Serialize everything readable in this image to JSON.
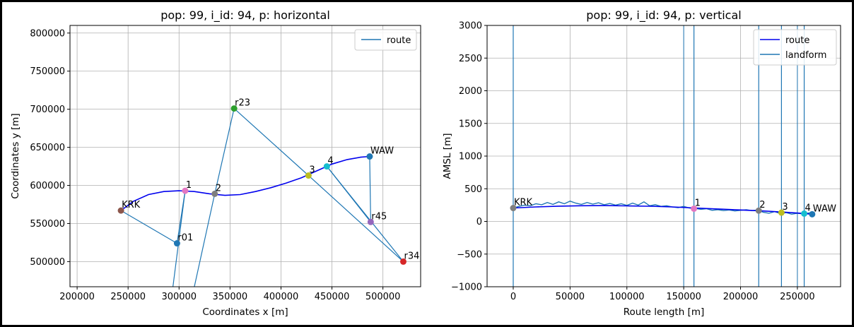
{
  "chart_data": [
    {
      "type": "line",
      "title": "pop: 99, i_id: 94, p: horizontal",
      "xlabel": "Coordinates x [m]",
      "ylabel": "Coordinates y [m]",
      "xlim": [
        193000,
        537000
      ],
      "ylim": [
        467000,
        810000
      ],
      "xticks": [
        200000,
        250000,
        300000,
        350000,
        400000,
        450000,
        500000
      ],
      "yticks": [
        500000,
        550000,
        600000,
        650000,
        700000,
        750000,
        800000
      ],
      "grid": true,
      "legend": {
        "position": "top-right",
        "entries": [
          "route"
        ]
      },
      "colors": {
        "route_curve": "#0000ee",
        "route_legend": "#1f77b4",
        "segments": "#1f77b4"
      },
      "points": [
        {
          "label": "KRK",
          "x": 243000,
          "y": 567000,
          "color": "#8c564b"
        },
        {
          "label": "1",
          "x": 306000,
          "y": 593000,
          "color": "#e377c2"
        },
        {
          "label": "2",
          "x": 335000,
          "y": 589000,
          "color": "#7f7f7f"
        },
        {
          "label": "3",
          "x": 427000,
          "y": 613000,
          "color": "#bcbd22"
        },
        {
          "label": "4",
          "x": 445000,
          "y": 625000,
          "color": "#17becf"
        },
        {
          "label": "WAW",
          "x": 487000,
          "y": 638000,
          "color": "#1f77b4"
        },
        {
          "label": "r01",
          "x": 298000,
          "y": 524000,
          "color": "#1f77b4"
        },
        {
          "label": "r23",
          "x": 354000,
          "y": 701000,
          "color": "#2ca02c"
        },
        {
          "label": "r34",
          "x": 520000,
          "y": 500000,
          "color": "#d62728"
        },
        {
          "label": "r45",
          "x": 488000,
          "y": 552000,
          "color": "#9467bd"
        }
      ],
      "segments": [
        [
          [
            243000,
            567000
          ],
          [
            298000,
            524000
          ]
        ],
        [
          [
            298000,
            524000
          ],
          [
            306000,
            593000
          ]
        ],
        [
          [
            306000,
            593000
          ],
          [
            294000,
            467000
          ]
        ],
        [
          [
            335000,
            589000
          ],
          [
            354000,
            701000
          ]
        ],
        [
          [
            315000,
            467000
          ],
          [
            335000,
            589000
          ]
        ],
        [
          [
            354000,
            701000
          ],
          [
            427000,
            613000
          ]
        ],
        [
          [
            427000,
            613000
          ],
          [
            520000,
            500000
          ]
        ],
        [
          [
            520000,
            500000
          ],
          [
            445000,
            625000
          ]
        ],
        [
          [
            445000,
            625000
          ],
          [
            488000,
            552000
          ]
        ],
        [
          [
            488000,
            552000
          ],
          [
            487000,
            638000
          ]
        ]
      ],
      "route": [
        [
          243000,
          567000
        ],
        [
          255000,
          579000
        ],
        [
          270000,
          588000
        ],
        [
          285000,
          592000
        ],
        [
          300000,
          593000
        ],
        [
          315000,
          592000
        ],
        [
          330000,
          589000
        ],
        [
          345000,
          587000
        ],
        [
          360000,
          588000
        ],
        [
          375000,
          592000
        ],
        [
          390000,
          597000
        ],
        [
          405000,
          603000
        ],
        [
          420000,
          610000
        ],
        [
          435000,
          619000
        ],
        [
          450000,
          628000
        ],
        [
          465000,
          634000
        ],
        [
          478000,
          637000
        ],
        [
          487000,
          638000
        ]
      ]
    },
    {
      "type": "line",
      "title": "pop: 99, i_id: 94, p: vertical",
      "xlabel": "Route length [m]",
      "ylabel": "AMSL [m]",
      "xlim": [
        -23000,
        288000
      ],
      "ylim": [
        -1000,
        3000
      ],
      "xticks": [
        0,
        50000,
        100000,
        150000,
        200000,
        250000
      ],
      "yticks": [
        -1000,
        -500,
        0,
        500,
        1000,
        1500,
        2000,
        2500,
        3000
      ],
      "grid": true,
      "legend": {
        "position": "top-right",
        "entries": [
          "route",
          "landform"
        ]
      },
      "colors": {
        "route": "#0000ee",
        "landform": "#1f77b4"
      },
      "points": [
        {
          "label": "KRK",
          "x": 0,
          "y": 205,
          "color": "#7f7f7f"
        },
        {
          "label": "1",
          "x": 159000,
          "y": 195,
          "color": "#e377c2"
        },
        {
          "label": "2",
          "x": 216000,
          "y": 165,
          "color": "#7f7f7f"
        },
        {
          "label": "3",
          "x": 236000,
          "y": 135,
          "color": "#bcbd22"
        },
        {
          "label": "4",
          "x": 256000,
          "y": 120,
          "color": "#17becf"
        },
        {
          "label": "WAW",
          "x": 263000,
          "y": 110,
          "color": "#1f77b4"
        }
      ],
      "landform_walls": [
        0,
        159000,
        216000,
        236000,
        256000
      ],
      "grid_walls": [
        150000,
        250000
      ],
      "route": [
        [
          0,
          205
        ],
        [
          20000,
          222
        ],
        [
          40000,
          233
        ],
        [
          60000,
          240
        ],
        [
          80000,
          242
        ],
        [
          100000,
          238
        ],
        [
          120000,
          232
        ],
        [
          140000,
          222
        ],
        [
          160000,
          205
        ],
        [
          180000,
          190
        ],
        [
          200000,
          175
        ],
        [
          220000,
          160
        ],
        [
          240000,
          140
        ],
        [
          255000,
          122
        ],
        [
          263000,
          110
        ]
      ],
      "landform": [
        [
          0,
          205
        ],
        [
          5000,
          230
        ],
        [
          10000,
          250
        ],
        [
          15000,
          240
        ],
        [
          20000,
          270
        ],
        [
          25000,
          255
        ],
        [
          30000,
          290
        ],
        [
          35000,
          260
        ],
        [
          40000,
          300
        ],
        [
          45000,
          270
        ],
        [
          50000,
          310
        ],
        [
          55000,
          280
        ],
        [
          60000,
          260
        ],
        [
          65000,
          290
        ],
        [
          70000,
          265
        ],
        [
          75000,
          285
        ],
        [
          80000,
          255
        ],
        [
          85000,
          275
        ],
        [
          90000,
          250
        ],
        [
          95000,
          270
        ],
        [
          100000,
          245
        ],
        [
          105000,
          280
        ],
        [
          110000,
          250
        ],
        [
          115000,
          300
        ],
        [
          120000,
          240
        ],
        [
          125000,
          255
        ],
        [
          130000,
          230
        ],
        [
          135000,
          240
        ],
        [
          140000,
          220
        ],
        [
          145000,
          210
        ],
        [
          150000,
          230
        ],
        [
          155000,
          205
        ],
        [
          160000,
          200
        ],
        [
          165000,
          185
        ],
        [
          170000,
          195
        ],
        [
          175000,
          170
        ],
        [
          180000,
          180
        ],
        [
          185000,
          165
        ],
        [
          190000,
          175
        ],
        [
          195000,
          160
        ],
        [
          200000,
          170
        ],
        [
          205000,
          180
        ],
        [
          210000,
          165
        ],
        [
          215000,
          175
        ],
        [
          220000,
          140
        ],
        [
          225000,
          125
        ],
        [
          230000,
          150
        ],
        [
          235000,
          120
        ],
        [
          240000,
          135
        ],
        [
          245000,
          110
        ],
        [
          250000,
          125
        ],
        [
          255000,
          115
        ],
        [
          260000,
          130
        ],
        [
          263000,
          110
        ]
      ]
    }
  ]
}
